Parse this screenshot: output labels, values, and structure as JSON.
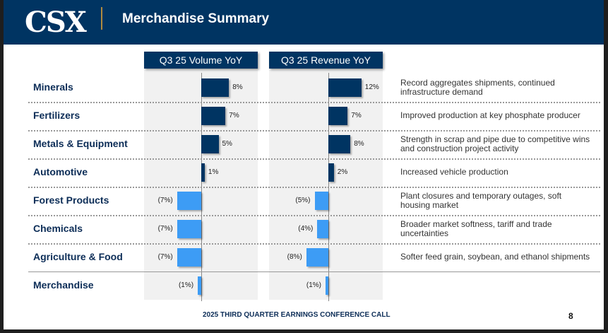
{
  "header": {
    "logo": "CSX",
    "title": "Merchandise Summary"
  },
  "footer": {
    "text": "2025 THIRD QUARTER EARNINGS CONFERENCE CALL",
    "page": "8"
  },
  "colors": {
    "navy": "#003462",
    "positive": "#003462",
    "negative": "#3d9cf5",
    "panel": "#f1f1f1"
  },
  "chart_data": [
    {
      "type": "bar",
      "orientation": "horizontal",
      "title": "Q3 25 Volume YoY",
      "categories": [
        "Minerals",
        "Fertilizers",
        "Metals & Equipment",
        "Automotive",
        "Forest Products",
        "Chemicals",
        "Agriculture & Food",
        "Merchandise"
      ],
      "values": [
        8,
        7,
        5,
        1,
        -7,
        -7,
        -7,
        -1
      ],
      "labels": [
        "8%",
        "7%",
        "5%",
        "1%",
        "(7%)",
        "(7%)",
        "(7%)",
        "(1%)"
      ]
    },
    {
      "type": "bar",
      "orientation": "horizontal",
      "title": "Q3 25 Revenue YoY",
      "categories": [
        "Minerals",
        "Fertilizers",
        "Metals & Equipment",
        "Automotive",
        "Forest Products",
        "Chemicals",
        "Agriculture & Food",
        "Merchandise"
      ],
      "values": [
        12,
        7,
        8,
        2,
        -5,
        -4,
        -8,
        -1
      ],
      "labels": [
        "12%",
        "7%",
        "8%",
        "2%",
        "(5%)",
        "(4%)",
        "(8%)",
        "(1%)"
      ]
    }
  ],
  "notes": [
    "Record aggregates shipments, continued infrastructure demand",
    "Improved production at key phosphate producer",
    "Strength in scrap and pipe due to competitive wins and construction project activity",
    "Increased vehicle production",
    "Plant closures and temporary outages, soft housing market",
    "Broader market softness, tariff and trade uncertainties",
    "Softer feed grain, soybean, and ethanol shipments",
    ""
  ]
}
